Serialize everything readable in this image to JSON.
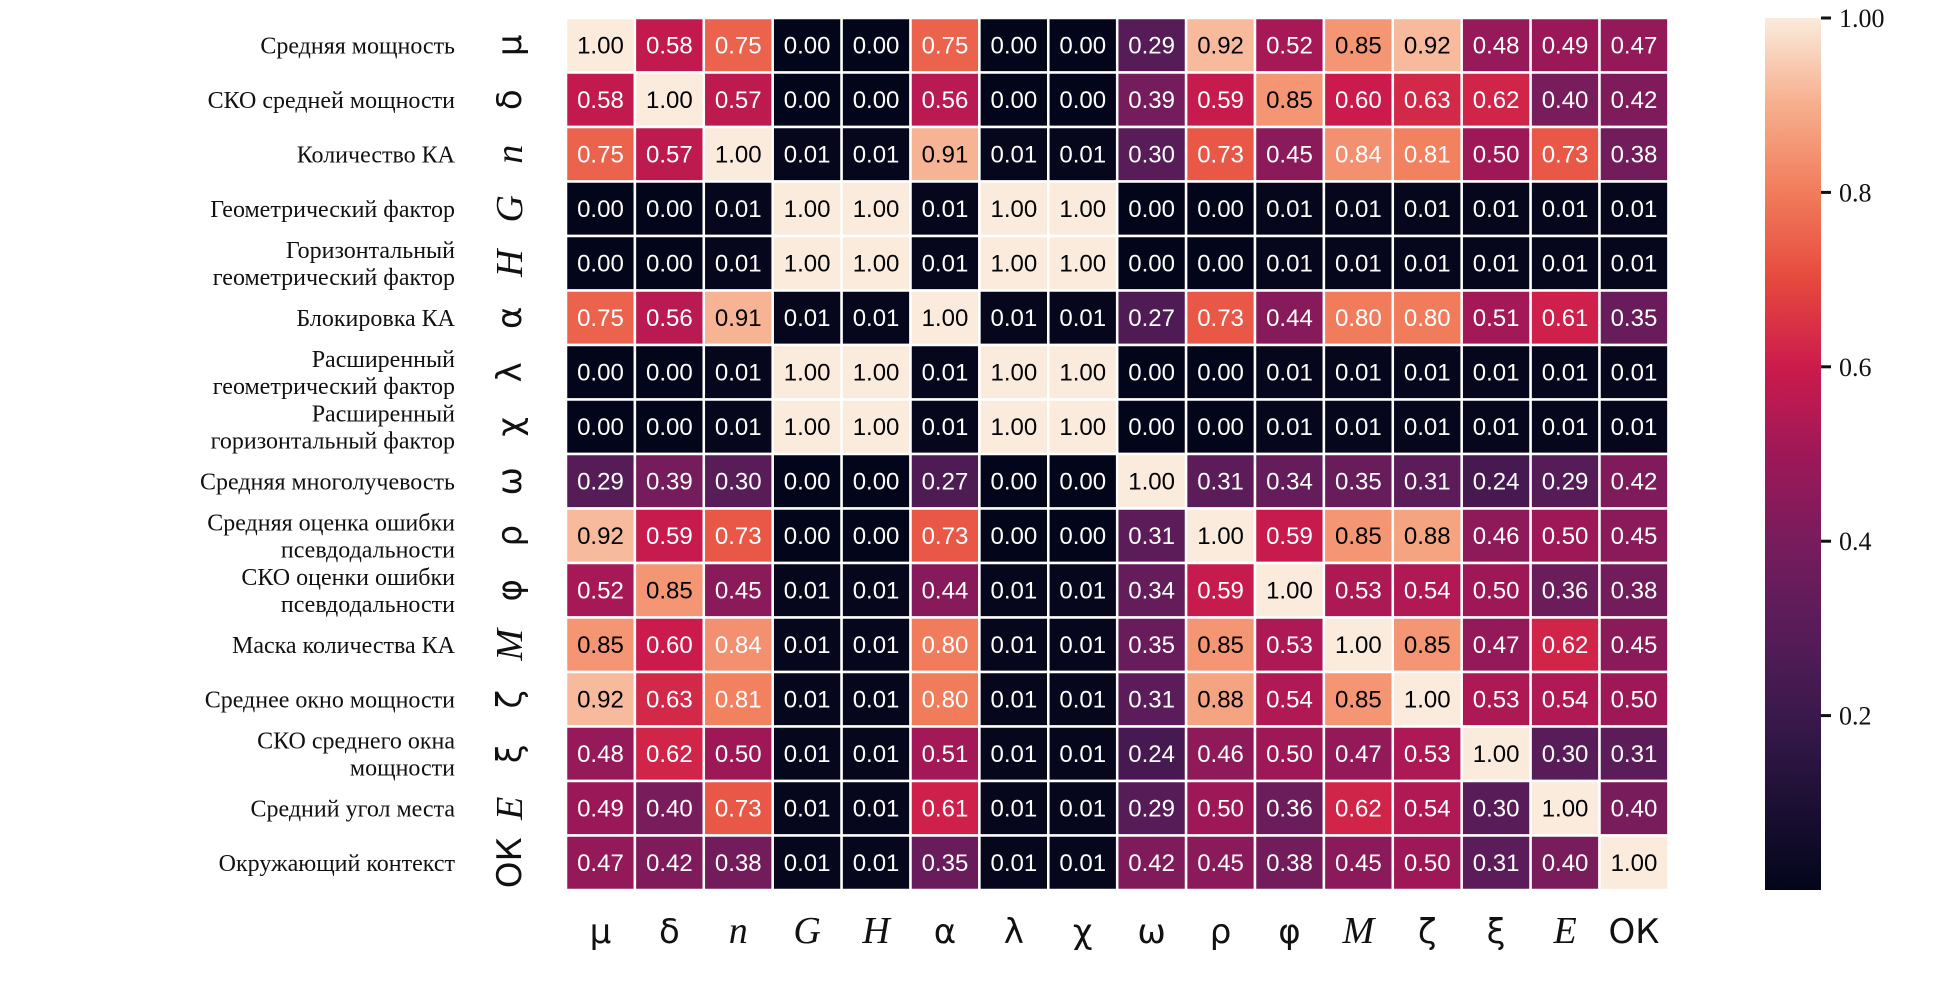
{
  "chart_data": {
    "type": "heatmap",
    "title": "",
    "row_labels": [
      [
        "Средняя мощность"
      ],
      [
        "СКО средней мощности"
      ],
      [
        "Количество  КА"
      ],
      [
        "Геометрический  фактор"
      ],
      [
        "Горизонтальный",
        "геометрический фактор"
      ],
      [
        "Блокировка  КА"
      ],
      [
        "Расширенный",
        "геометрический фактор"
      ],
      [
        "Расширенный",
        "горизонтальный фактор"
      ],
      [
        "Средняя многолучевость"
      ],
      [
        "Средняя оценка ошибки",
        "псевдодальности"
      ],
      [
        "СКО оценки ошибки",
        "псевдодальности"
      ],
      [
        "Маска количества КА"
      ],
      [
        "Среднее окно мощности"
      ],
      [
        "СКО среднего окна",
        "мощности"
      ],
      [
        "Средний угол места"
      ],
      [
        "Окружающий контекст"
      ]
    ],
    "symbols": [
      {
        "text": "μ",
        "italic": false
      },
      {
        "text": "δ",
        "italic": false
      },
      {
        "text": "n",
        "italic": true
      },
      {
        "text": "G",
        "italic": true
      },
      {
        "text": "H",
        "italic": true
      },
      {
        "text": "α",
        "italic": false
      },
      {
        "text": "λ",
        "italic": false
      },
      {
        "text": "χ",
        "italic": false
      },
      {
        "text": "ω",
        "italic": false
      },
      {
        "text": "ρ",
        "italic": false
      },
      {
        "text": "φ",
        "italic": false
      },
      {
        "text": "M",
        "italic": true
      },
      {
        "text": "ζ",
        "italic": false
      },
      {
        "text": "ξ",
        "italic": false
      },
      {
        "text": "E",
        "italic": true
      },
      {
        "text": "ОК",
        "italic": false
      }
    ],
    "values": [
      [
        1.0,
        0.58,
        0.75,
        0.0,
        0.0,
        0.75,
        0.0,
        0.0,
        0.29,
        0.92,
        0.52,
        0.85,
        0.92,
        0.48,
        0.49,
        0.47
      ],
      [
        0.58,
        1.0,
        0.57,
        0.0,
        0.0,
        0.56,
        0.0,
        0.0,
        0.39,
        0.59,
        0.85,
        0.6,
        0.63,
        0.62,
        0.4,
        0.42
      ],
      [
        0.75,
        0.57,
        1.0,
        0.01,
        0.01,
        0.91,
        0.01,
        0.01,
        0.3,
        0.73,
        0.45,
        0.84,
        0.81,
        0.5,
        0.73,
        0.38
      ],
      [
        0.0,
        0.0,
        0.01,
        1.0,
        1.0,
        0.01,
        1.0,
        1.0,
        0.0,
        0.0,
        0.01,
        0.01,
        0.01,
        0.01,
        0.01,
        0.01
      ],
      [
        0.0,
        0.0,
        0.01,
        1.0,
        1.0,
        0.01,
        1.0,
        1.0,
        0.0,
        0.0,
        0.01,
        0.01,
        0.01,
        0.01,
        0.01,
        0.01
      ],
      [
        0.75,
        0.56,
        0.91,
        0.01,
        0.01,
        1.0,
        0.01,
        0.01,
        0.27,
        0.73,
        0.44,
        0.8,
        0.8,
        0.51,
        0.61,
        0.35
      ],
      [
        0.0,
        0.0,
        0.01,
        1.0,
        1.0,
        0.01,
        1.0,
        1.0,
        0.0,
        0.0,
        0.01,
        0.01,
        0.01,
        0.01,
        0.01,
        0.01
      ],
      [
        0.0,
        0.0,
        0.01,
        1.0,
        1.0,
        0.01,
        1.0,
        1.0,
        0.0,
        0.0,
        0.01,
        0.01,
        0.01,
        0.01,
        0.01,
        0.01
      ],
      [
        0.29,
        0.39,
        0.3,
        0.0,
        0.0,
        0.27,
        0.0,
        0.0,
        1.0,
        0.31,
        0.34,
        0.35,
        0.31,
        0.24,
        0.29,
        0.42
      ],
      [
        0.92,
        0.59,
        0.73,
        0.0,
        0.0,
        0.73,
        0.0,
        0.0,
        0.31,
        1.0,
        0.59,
        0.85,
        0.88,
        0.46,
        0.5,
        0.45
      ],
      [
        0.52,
        0.85,
        0.45,
        0.01,
        0.01,
        0.44,
        0.01,
        0.01,
        0.34,
        0.59,
        1.0,
        0.53,
        0.54,
        0.5,
        0.36,
        0.38
      ],
      [
        0.85,
        0.6,
        0.84,
        0.01,
        0.01,
        0.8,
        0.01,
        0.01,
        0.35,
        0.85,
        0.53,
        1.0,
        0.85,
        0.47,
        0.62,
        0.45
      ],
      [
        0.92,
        0.63,
        0.81,
        0.01,
        0.01,
        0.8,
        0.01,
        0.01,
        0.31,
        0.88,
        0.54,
        0.85,
        1.0,
        0.53,
        0.54,
        0.5
      ],
      [
        0.48,
        0.62,
        0.5,
        0.01,
        0.01,
        0.51,
        0.01,
        0.01,
        0.24,
        0.46,
        0.5,
        0.47,
        0.53,
        1.0,
        0.3,
        0.31
      ],
      [
        0.49,
        0.4,
        0.73,
        0.01,
        0.01,
        0.61,
        0.01,
        0.01,
        0.29,
        0.5,
        0.36,
        0.62,
        0.54,
        0.3,
        1.0,
        0.4
      ],
      [
        0.47,
        0.42,
        0.38,
        0.01,
        0.01,
        0.35,
        0.01,
        0.01,
        0.42,
        0.45,
        0.38,
        0.45,
        0.5,
        0.31,
        0.4,
        1.0
      ]
    ],
    "value_format": "2 decimals",
    "colormap": "rocket",
    "vmin": 0.0,
    "vmax": 1.0,
    "colorbar_ticks": [
      {
        "value": 1.0,
        "label": "1.00"
      },
      {
        "value": 0.8,
        "label": "0.8"
      },
      {
        "value": 0.6,
        "label": "0.6"
      },
      {
        "value": 0.4,
        "label": "0.4"
      },
      {
        "value": 0.2,
        "label": "0.2"
      }
    ],
    "cell_border_color": "#ffffff",
    "text_light": "#ffffff",
    "text_dark": "#000000"
  }
}
